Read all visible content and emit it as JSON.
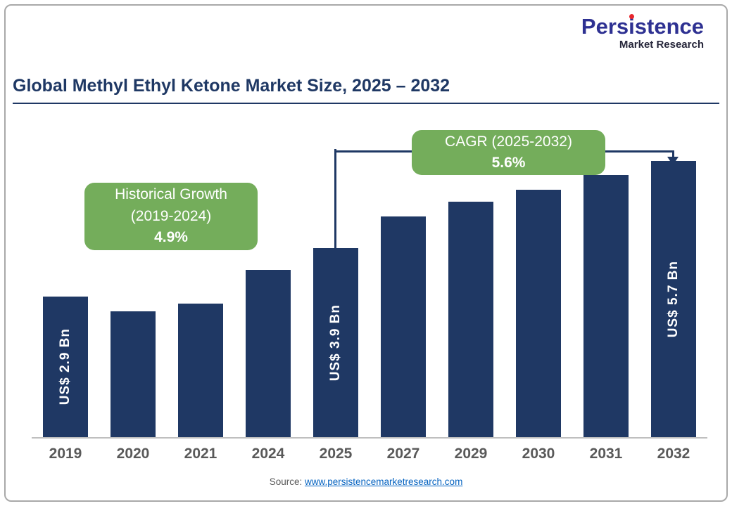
{
  "logo": {
    "part1": "Pers",
    "part2": "i",
    "part3": "stence",
    "subtitle": "Market Research"
  },
  "title": "Global Methyl Ethyl Ketone Market Size, 2025 – 2032",
  "annotations": {
    "historical": {
      "line1": "Historical Growth",
      "line2": "(2019-2024)",
      "value": "4.9%"
    },
    "cagr": {
      "line1": "CAGR (2025-2032)",
      "value": "5.6%"
    }
  },
  "source": {
    "label": "Source:",
    "link": "www.persistencemarketresearch.com"
  },
  "chart_data": {
    "type": "bar",
    "title": "Global Methyl Ethyl Ketone Market Size, 2025 – 2032",
    "categories": [
      "2019",
      "2020",
      "2021",
      "2024",
      "2025",
      "2027",
      "2029",
      "2030",
      "2031",
      "2032"
    ],
    "values": [
      2.9,
      2.6,
      2.75,
      3.45,
      3.9,
      4.55,
      4.85,
      5.1,
      5.4,
      5.7
    ],
    "unit": "US$ Bn",
    "bar_labels": {
      "2019": "US$ 2.9 Bn",
      "2025": "US$ 3.9 Bn",
      "2032": "US$ 5.7 Bn"
    },
    "xlabel": "",
    "ylabel": "",
    "ylim": [
      0,
      6.55
    ],
    "grid": false,
    "legend": false,
    "bar_color": "#1F3864",
    "annotation_color": "#74AD5B",
    "historical_growth_2019_2024_pct": 4.9,
    "cagr_2025_2032_pct": 5.6
  }
}
